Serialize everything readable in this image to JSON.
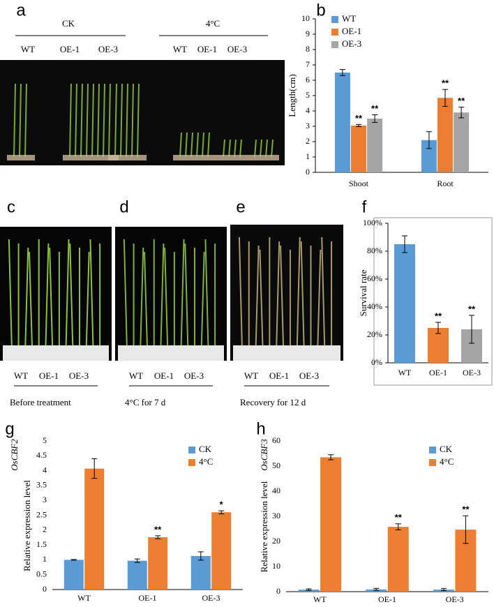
{
  "panel_labels": [
    "a",
    "b",
    "c",
    "d",
    "e",
    "f",
    "g",
    "h"
  ],
  "photo_a": {
    "groups": [
      "CK",
      "4°C"
    ],
    "genotypes": [
      [
        "WT",
        "OE-1",
        "OE-3"
      ],
      [
        "WT",
        "OE-1",
        "OE-3"
      ]
    ]
  },
  "photos_cde": [
    {
      "genotypes": [
        "WT",
        "OE-1",
        "OE-3"
      ],
      "caption": "Before treatment"
    },
    {
      "genotypes": [
        "WT",
        "OE-1",
        "OE-3"
      ],
      "caption": "4°C for 7 d"
    },
    {
      "genotypes": [
        "WT",
        "OE-1",
        "OE-3"
      ],
      "caption": "Recovery for 12 d"
    }
  ],
  "chart_data": [
    {
      "type": "bar",
      "ylabel": "Length(cm)",
      "categories": [
        "Shoot",
        "Root"
      ],
      "ylim": [
        0,
        10
      ],
      "yticks": [
        0,
        1,
        2,
        3,
        4,
        5,
        6,
        7,
        8,
        9,
        10
      ],
      "legend": "upper left",
      "series": [
        {
          "name": "WT",
          "color": "#5b9bd5",
          "values": [
            6.5,
            2.1
          ],
          "errors": [
            0.2,
            0.55
          ]
        },
        {
          "name": "OE-1",
          "color": "#ed7d31",
          "values": [
            3.05,
            4.85
          ],
          "errors": [
            0.07,
            0.55
          ],
          "annotations": [
            "**",
            "**"
          ]
        },
        {
          "name": "OE-3",
          "color": "#a5a5a5",
          "values": [
            3.5,
            3.9
          ],
          "errors": [
            0.25,
            0.35
          ],
          "annotations": [
            "**",
            "**"
          ]
        }
      ]
    },
    {
      "type": "bar",
      "ylabel": "Survival rate",
      "categories": [
        "WT",
        "OE-1",
        "OE-3"
      ],
      "ylim": [
        0,
        100
      ],
      "yticks": [
        {
          "value": 0,
          "label": "0%"
        },
        {
          "value": 20,
          "label": "20%"
        },
        {
          "value": 40,
          "label": "40%"
        },
        {
          "value": 60,
          "label": "60%"
        },
        {
          "value": 80,
          "label": "80%"
        },
        {
          "value": 100,
          "label": "100%"
        }
      ],
      "series": [
        {
          "colors": [
            "#5b9bd5",
            "#ed7d31",
            "#a5a5a5"
          ],
          "values": [
            85,
            25,
            24
          ],
          "errors": [
            6,
            4,
            10
          ],
          "annotations": [
            null,
            "**",
            "**"
          ]
        }
      ]
    },
    {
      "type": "bar",
      "gene": "OsCBF2",
      "ylabel": "Relative expression level",
      "categories": [
        "WT",
        "OE-1",
        "OE-3"
      ],
      "ylim": [
        0,
        5
      ],
      "yticks": [
        0,
        0.5,
        1,
        1.5,
        2,
        2.5,
        3,
        3.5,
        4,
        4.5,
        5
      ],
      "legend": "upper right",
      "series": [
        {
          "name": "CK",
          "color": "#5b9bd5",
          "values": [
            1.0,
            0.97,
            1.13
          ],
          "errors": [
            0.01,
            0.06,
            0.14
          ]
        },
        {
          "name": "4°C",
          "color": "#ed7d31",
          "values": [
            4.07,
            1.76,
            2.6
          ],
          "errors": [
            0.33,
            0.05,
            0.05
          ],
          "annotations": [
            null,
            "**",
            "*"
          ]
        }
      ]
    },
    {
      "type": "bar",
      "gene": "OsCBF3",
      "ylabel": "Relative expression level",
      "categories": [
        "WT",
        "OE-1",
        "OE-3"
      ],
      "ylim": [
        0,
        60
      ],
      "yticks": [
        0,
        10,
        20,
        30,
        40,
        50,
        60
      ],
      "legend": "upper right",
      "series": [
        {
          "name": "CK",
          "color": "#5b9bd5",
          "values": [
            0.8,
            0.9,
            0.8
          ],
          "errors": [
            0.3,
            0.4,
            0.4
          ]
        },
        {
          "name": "4°C",
          "color": "#ed7d31",
          "values": [
            53.5,
            25.8,
            24.7
          ],
          "errors": [
            1,
            1.2,
            5.5
          ],
          "annotations": [
            null,
            "**",
            "**"
          ]
        }
      ]
    }
  ]
}
